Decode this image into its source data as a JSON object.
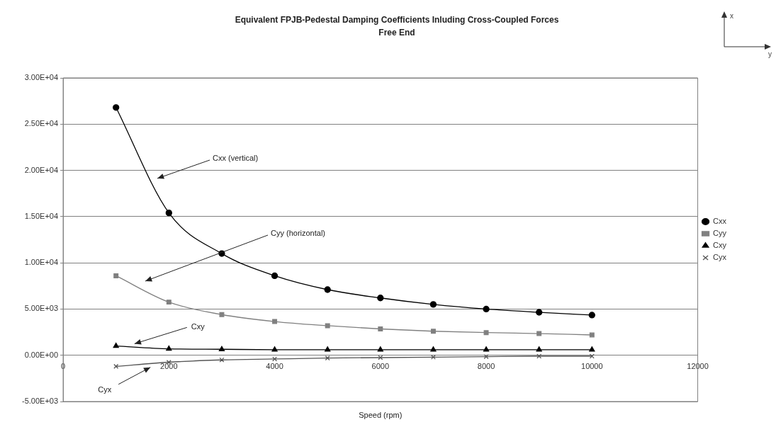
{
  "chart_data": {
    "type": "line",
    "title": "Equivalent FPJB-Pedestal Damping Coefficients Inluding Cross-Coupled Forces",
    "subtitle": "Free End",
    "xlabel": "Speed (rpm)",
    "x": [
      1000,
      2000,
      3000,
      4000,
      5000,
      6000,
      7000,
      8000,
      9000,
      10000
    ],
    "series": [
      {
        "name": "Cxx",
        "color": "#000000",
        "marker": "circle",
        "values": [
          26800,
          15400,
          11000,
          8600,
          7100,
          6200,
          5500,
          5000,
          4650,
          4350
        ]
      },
      {
        "name": "Cyy",
        "color": "#808080",
        "marker": "square",
        "values": [
          8600,
          5750,
          4400,
          3650,
          3200,
          2850,
          2600,
          2450,
          2350,
          2200
        ]
      },
      {
        "name": "Cxy",
        "color": "#000000",
        "marker": "triangle",
        "values": [
          1000,
          700,
          650,
          600,
          600,
          600,
          600,
          600,
          600,
          600
        ]
      },
      {
        "name": "Cyx",
        "color": "#555555",
        "marker": "cross",
        "values": [
          -1200,
          -750,
          -500,
          -400,
          -300,
          -250,
          -200,
          -150,
          -100,
          -100
        ]
      }
    ],
    "xlim": [
      0,
      12000
    ],
    "xticks": [
      0,
      2000,
      4000,
      6000,
      8000,
      10000,
      12000
    ],
    "ylim": [
      -5000,
      30000
    ],
    "yticks": [
      {
        "value": -5000,
        "label": "-5.00E+03"
      },
      {
        "value": 0,
        "label": "0.00E+00"
      },
      {
        "value": 5000,
        "label": "5.00E+03"
      },
      {
        "value": 10000,
        "label": "1.00E+04"
      },
      {
        "value": 15000,
        "label": "1.50E+04"
      },
      {
        "value": 20000,
        "label": "2.00E+04"
      },
      {
        "value": 25000,
        "label": "2.50E+04"
      },
      {
        "value": 30000,
        "label": "3.00E+04"
      }
    ],
    "grid": "y",
    "legend": "right",
    "annotations": [
      "x",
      "y",
      "Cxx (vertical)",
      "Cyy (horizontal)",
      {
        "text": "Cxy",
        "x": 1350,
        "y": 1250
      },
      {
        "text": "Cyx",
        "x": 1650,
        "y": -1300
      }
    ]
  }
}
